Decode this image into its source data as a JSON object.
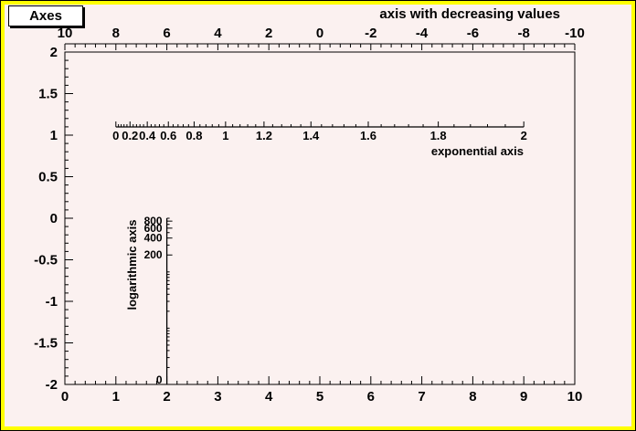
{
  "window": {
    "title_box": "Axes"
  },
  "colors": {
    "canvas_background": "#fbf1f0",
    "highlight_border": "#ffff00",
    "axis_color": "#000000",
    "title_box_bg": "#ffffff"
  },
  "chart_data": {
    "type": "axes",
    "title": "Axes",
    "main_frame": {
      "x_range": [
        0,
        10
      ],
      "y_range": [
        -2,
        2
      ],
      "x_tick_values": [
        0,
        1,
        2,
        3,
        4,
        5,
        6,
        7,
        8,
        9,
        10
      ],
      "x_tick_labels": [
        "0",
        "1",
        "2",
        "3",
        "4",
        "5",
        "6",
        "7",
        "8",
        "9",
        "10"
      ],
      "x_minor_step": 0.2,
      "y_tick_values": [
        2,
        1.5,
        1,
        0.5,
        0,
        -0.5,
        -1,
        -1.5,
        -2
      ],
      "y_tick_labels": [
        "2",
        "1.5",
        "1",
        "0.5",
        "0",
        "-0.5",
        "-1",
        "-1.5",
        "-2"
      ],
      "y_minor_step": 0.1,
      "grid": "off"
    },
    "top_axis": {
      "title": "axis with decreasing values",
      "range": [
        10,
        -10
      ],
      "tick_values": [
        10,
        8,
        6,
        4,
        2,
        0,
        -2,
        -4,
        -6,
        -8,
        -10
      ],
      "tick_labels": [
        "10",
        "8",
        "6",
        "4",
        "2",
        "0",
        "-2",
        "-4",
        "-6",
        "-8",
        "-10"
      ],
      "minor_step": 0.4
    },
    "exp_axis": {
      "title": "exponential axis",
      "range": [
        0,
        2
      ],
      "tick_values": [
        0,
        0.2,
        0.4,
        0.6,
        0.8,
        1,
        1.2,
        1.4,
        1.6,
        1.8,
        2
      ],
      "tick_labels": [
        "0",
        "0.2",
        "0.4",
        "0.6",
        "0.8",
        "1",
        "1.2",
        "1.4",
        "1.6",
        "1.8",
        "2"
      ],
      "minor_step": 0.04,
      "span_world_x": [
        1,
        9
      ]
    },
    "log_axis": {
      "title": "logarithmic axis",
      "value_max": 900,
      "label_values": [
        800,
        600,
        400,
        200
      ],
      "labels": [
        "800",
        "600",
        "400",
        "200"
      ],
      "bottom_label": "0",
      "position_world_x": 2,
      "span_world_y": [
        0,
        -2
      ]
    }
  }
}
